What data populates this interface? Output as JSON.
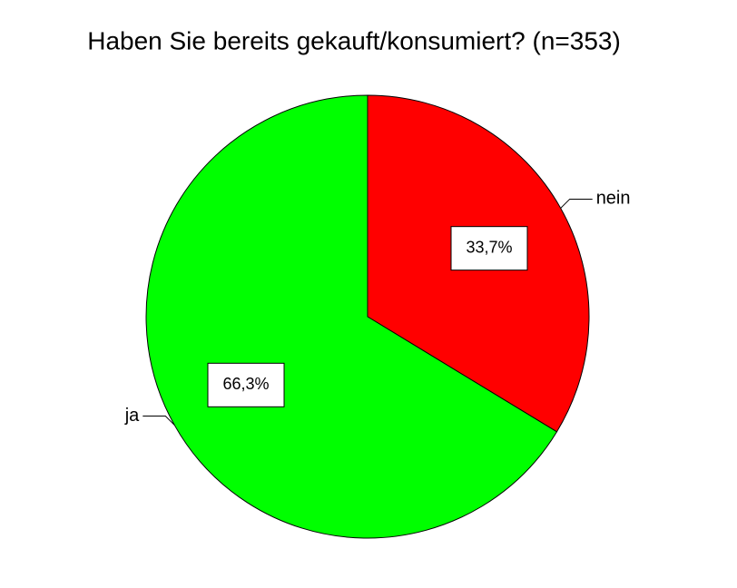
{
  "chart_data": {
    "type": "pie",
    "title": "Haben Sie bereits gekauft/konsumiert? (n=353)",
    "categories": [
      "nein",
      "ja"
    ],
    "values": [
      33.7,
      66.3
    ],
    "value_labels": [
      "33,7%",
      "66,3%"
    ],
    "colors": [
      "#ff0000",
      "#00ff00"
    ]
  }
}
